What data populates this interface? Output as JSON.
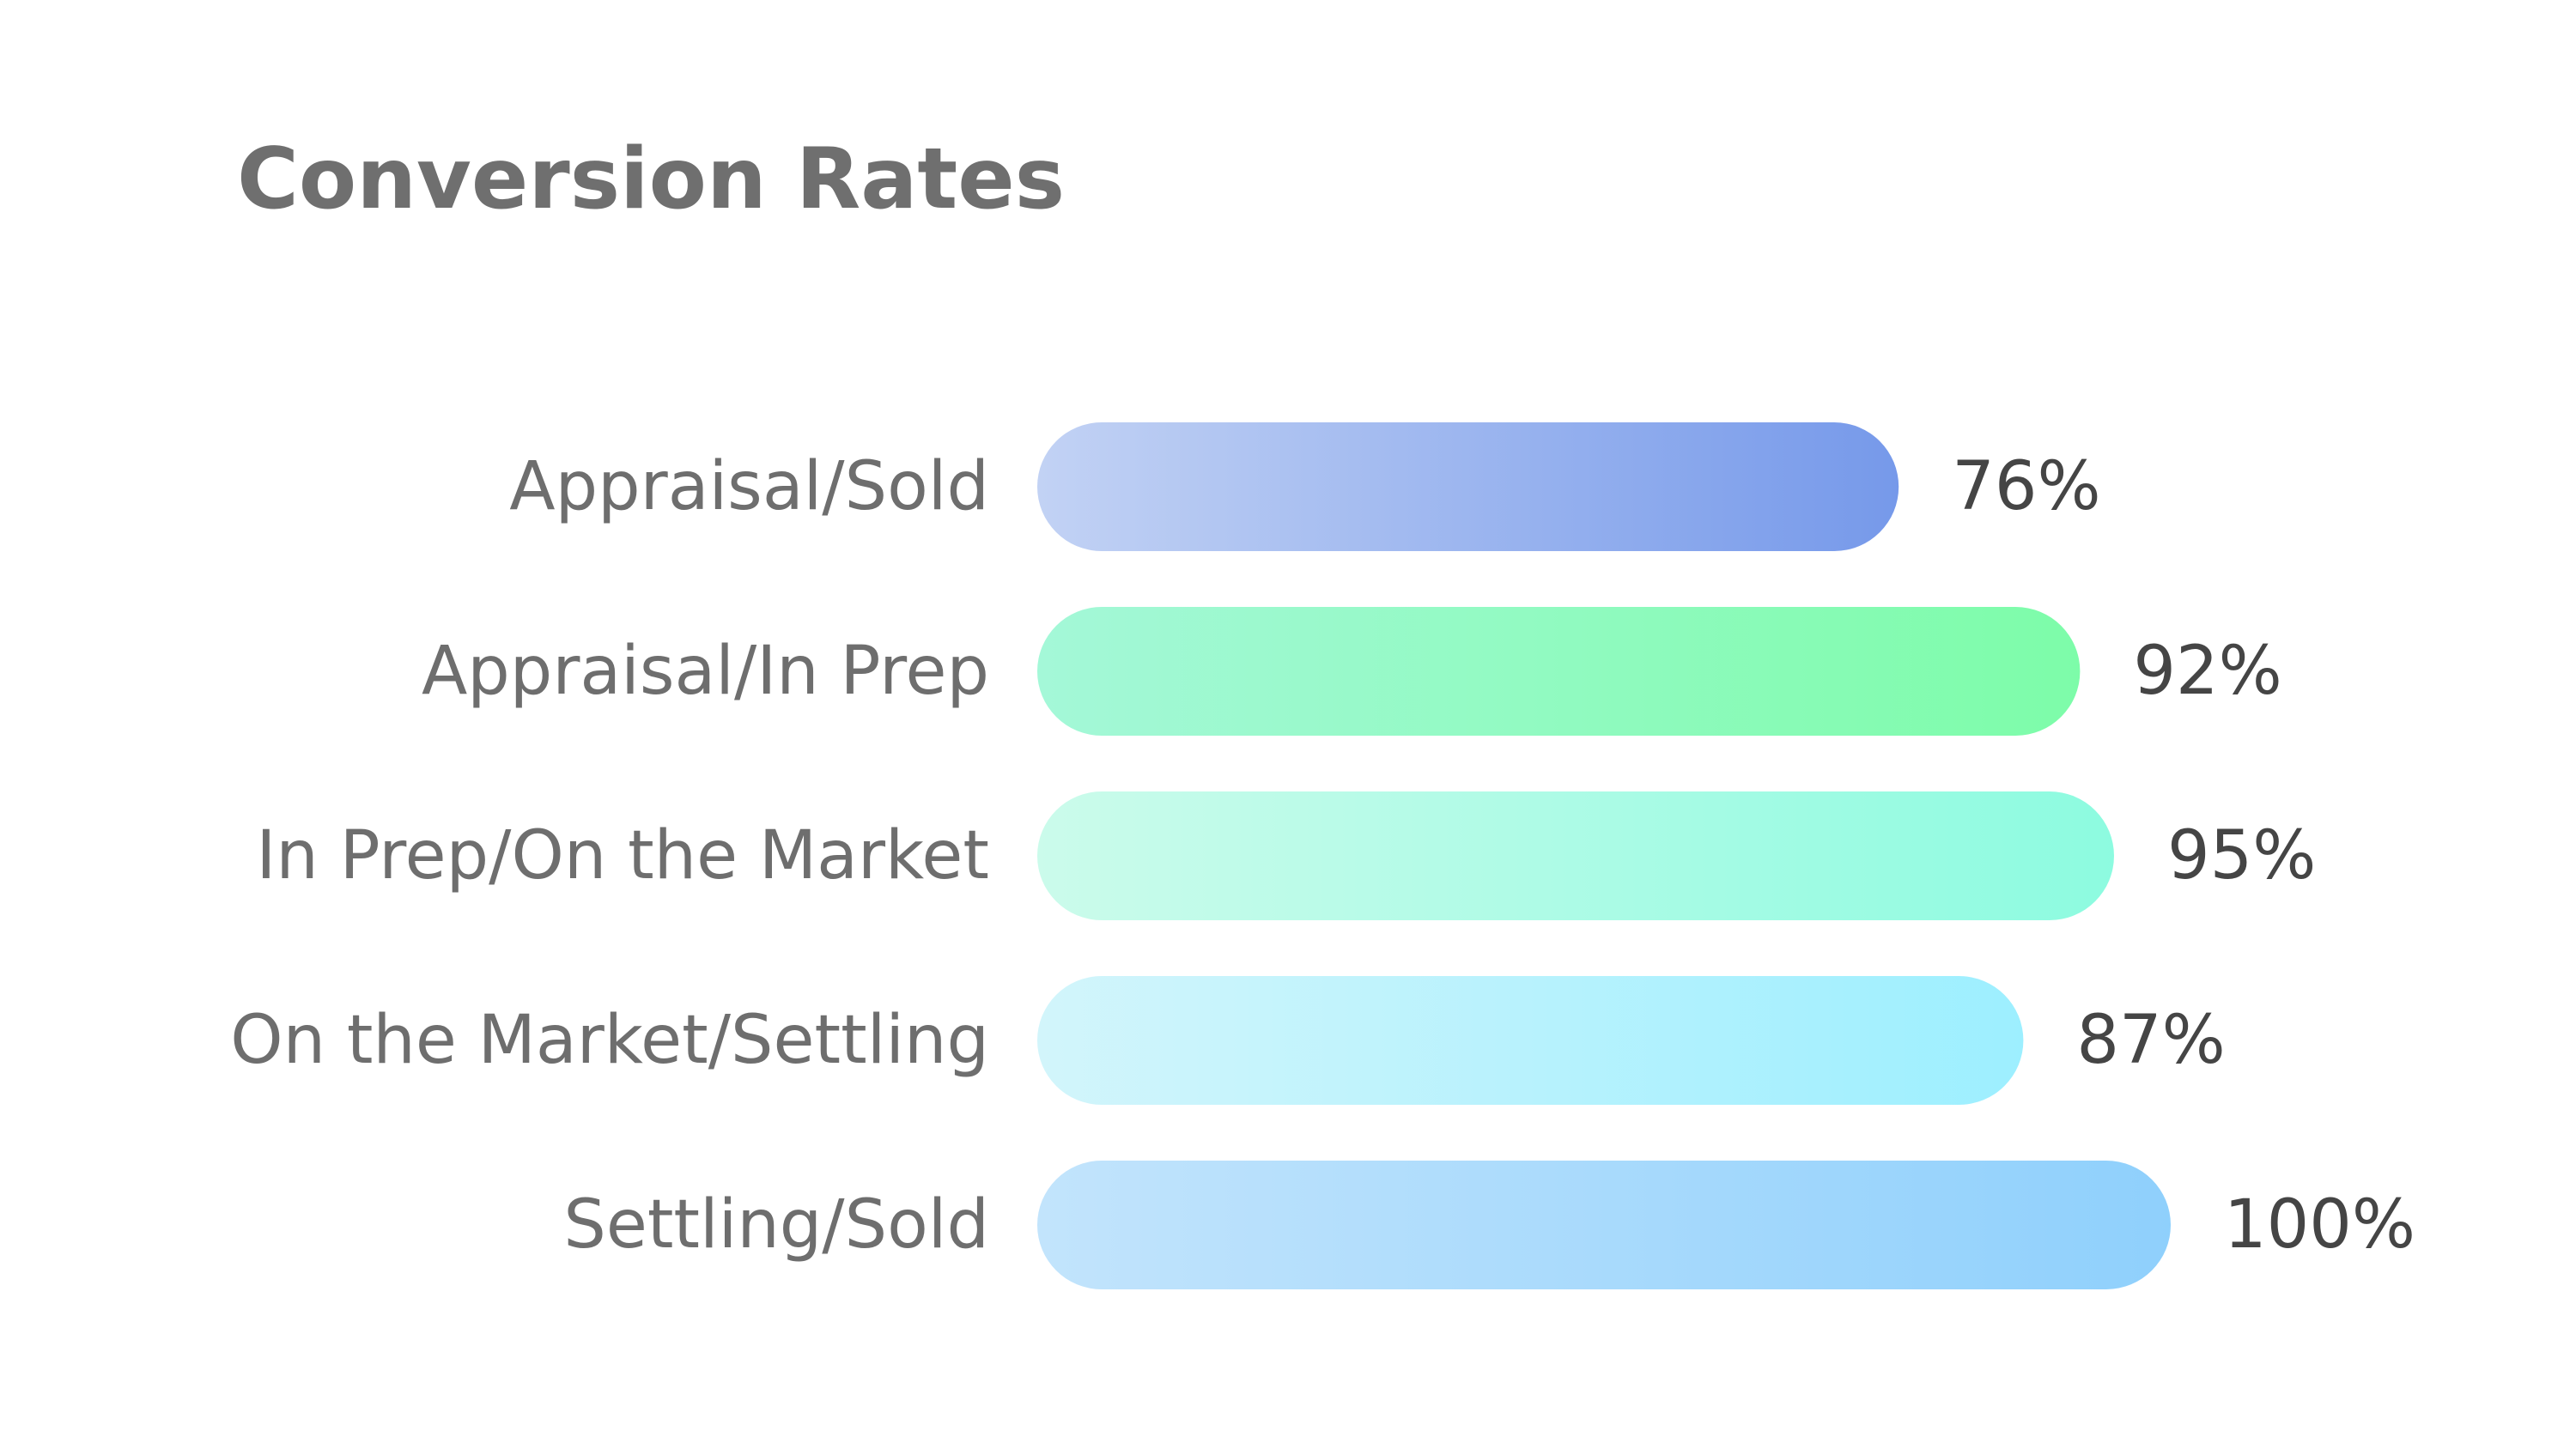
{
  "chart_data": {
    "type": "bar",
    "orientation": "horizontal",
    "title": "Conversion Rates",
    "categories": [
      "Appraisal/Sold",
      "Appraisal/In Prep",
      "In Prep/On the Market",
      "On the Market/Settling",
      "Settling/Sold"
    ],
    "values": [
      76,
      92,
      95,
      87,
      100
    ],
    "value_labels": [
      "76%",
      "92%",
      "95%",
      "87%",
      "100%"
    ],
    "unit": "%",
    "xlim": [
      0,
      100
    ],
    "grid": false,
    "legend": "none",
    "bar_colors": [
      [
        "#c2d2f4",
        "#7699ea"
      ],
      [
        "#a4f8d8",
        "#7dfca9"
      ],
      [
        "#cbfbeb",
        "#8dfbe0"
      ],
      [
        "#d2f5fb",
        "#9defff"
      ],
      [
        "#c2e4fc",
        "#8fd0fc"
      ]
    ]
  }
}
